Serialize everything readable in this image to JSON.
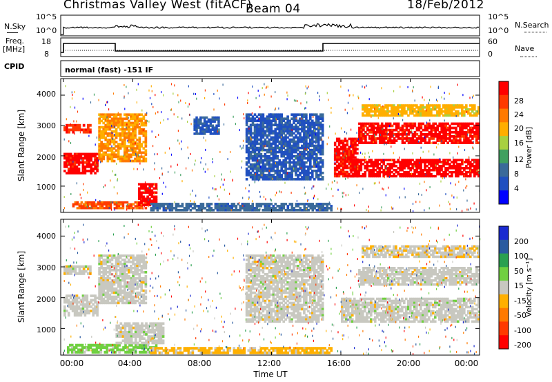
{
  "header": {
    "station_title": "Christmas Valley West (fitACF)",
    "beam": "Beam 04",
    "date": "18/Feb/2012"
  },
  "panels": {
    "nsky": {
      "label": "N.Sky",
      "tick_top": "10^5",
      "tick_bottom": "10^0",
      "right_label": "N.Search",
      "right_tick_top": "10^5",
      "right_tick_bottom": "10^0"
    },
    "freq": {
      "label_line1": "Freq.",
      "label_line2": "[MHz]",
      "tick_top": "18",
      "tick_bottom": "8",
      "right_label": "Nave",
      "right_tick_top": "60",
      "right_tick_bottom": "0"
    },
    "cpid": {
      "label": "CPID",
      "value": "normal (fast) -151 IF"
    }
  },
  "axes": {
    "y_label": "Slant Range [km]",
    "y_ticks": [
      "4000",
      "3000",
      "2000",
      "1000"
    ],
    "x_label": "Time UT",
    "x_ticks": [
      "00:00",
      "04:00",
      "08:00",
      "12:00",
      "16:00",
      "20:00",
      "00:00"
    ]
  },
  "colorbars": {
    "power": {
      "label": "Power [dB]",
      "ticks": [
        "28",
        "24",
        "20",
        "16",
        "12",
        "8",
        "4"
      ],
      "colors": [
        "#ff0000",
        "#ff3a00",
        "#ff7a00",
        "#ffae00",
        "#a8d040",
        "#40a060",
        "#3a6a9a",
        "#2050c0",
        "#0000ff"
      ]
    },
    "velocity": {
      "label": "Velocity [m s⁻¹]",
      "ticks": [
        "200",
        "100",
        "50",
        "15",
        "-15",
        "-50",
        "-100",
        "-200"
      ],
      "colors": [
        "#1a2ad0",
        "#2a5aa0",
        "#2aa050",
        "#70d040",
        "#c8c8c0",
        "#ffb000",
        "#ff7a00",
        "#ff3a00",
        "#ff0000"
      ]
    }
  },
  "chart_data": [
    {
      "type": "heatmap",
      "title": "Power",
      "xlabel": "Time UT",
      "ylabel": "Slant Range [km]",
      "xlim": [
        0,
        24
      ],
      "ylim": [
        180,
        4500
      ],
      "colorbar_label": "Power [dB]",
      "colorbar_range": [
        0,
        30
      ],
      "regions": [
        {
          "t0": 0.0,
          "t1": 2.0,
          "r0": 1400,
          "r1": 2100,
          "value": 28
        },
        {
          "t0": 0.0,
          "t1": 1.6,
          "r0": 2750,
          "r1": 3050,
          "value": 26
        },
        {
          "t0": 2.0,
          "t1": 4.8,
          "r0": 1800,
          "r1": 3400,
          "value": 20
        },
        {
          "t0": 0.5,
          "t1": 4.8,
          "r0": 250,
          "r1": 500,
          "value": 24
        },
        {
          "t0": 4.3,
          "t1": 5.4,
          "r0": 350,
          "r1": 1100,
          "value": 30
        },
        {
          "t0": 7.5,
          "t1": 9.0,
          "r0": 2700,
          "r1": 3300,
          "value": 6
        },
        {
          "t0": 10.5,
          "t1": 15.0,
          "r0": 1200,
          "r1": 3400,
          "value": 6
        },
        {
          "t0": 5.0,
          "t1": 15.5,
          "r0": 180,
          "r1": 450,
          "value": 8
        },
        {
          "t0": 15.6,
          "t1": 17.0,
          "r0": 1300,
          "r1": 2600,
          "value": 28
        },
        {
          "t0": 16.5,
          "t1": 24.0,
          "r0": 1300,
          "r1": 1900,
          "value": 30
        },
        {
          "t0": 17.0,
          "t1": 24.0,
          "r0": 2400,
          "r1": 3100,
          "value": 28
        },
        {
          "t0": 17.2,
          "t1": 24.0,
          "r0": 3300,
          "r1": 3700,
          "value": 18
        }
      ]
    },
    {
      "type": "heatmap",
      "title": "Velocity",
      "xlabel": "Time UT",
      "ylabel": "Slant Range [km]",
      "xlim": [
        0,
        24
      ],
      "ylim": [
        180,
        4500
      ],
      "colorbar_label": "Velocity [m s⁻¹]",
      "colorbar_range": [
        -200,
        200
      ],
      "regions": [
        {
          "t0": 0.0,
          "t1": 2.0,
          "r0": 1400,
          "r1": 2100,
          "value": 0
        },
        {
          "t0": 0.0,
          "t1": 1.6,
          "r0": 2750,
          "r1": 3050,
          "value": 0
        },
        {
          "t0": 2.0,
          "t1": 4.8,
          "r0": 1800,
          "r1": 3400,
          "value": 0
        },
        {
          "t0": 0.2,
          "t1": 5.4,
          "r0": 200,
          "r1": 500,
          "value": 40
        },
        {
          "t0": 3.0,
          "t1": 5.8,
          "r0": 500,
          "r1": 1200,
          "value": 0
        },
        {
          "t0": 5.0,
          "t1": 15.5,
          "r0": 180,
          "r1": 400,
          "value": -40
        },
        {
          "t0": 10.5,
          "t1": 15.0,
          "r0": 1200,
          "r1": 3400,
          "value": 0
        },
        {
          "t0": 16.0,
          "t1": 24.0,
          "r0": 1200,
          "r1": 2000,
          "value": 0
        },
        {
          "t0": 17.0,
          "t1": 24.0,
          "r0": 2400,
          "r1": 3000,
          "value": 0
        },
        {
          "t0": 17.2,
          "t1": 24.0,
          "r0": 3300,
          "r1": 3700,
          "value": -10
        }
      ]
    }
  ]
}
